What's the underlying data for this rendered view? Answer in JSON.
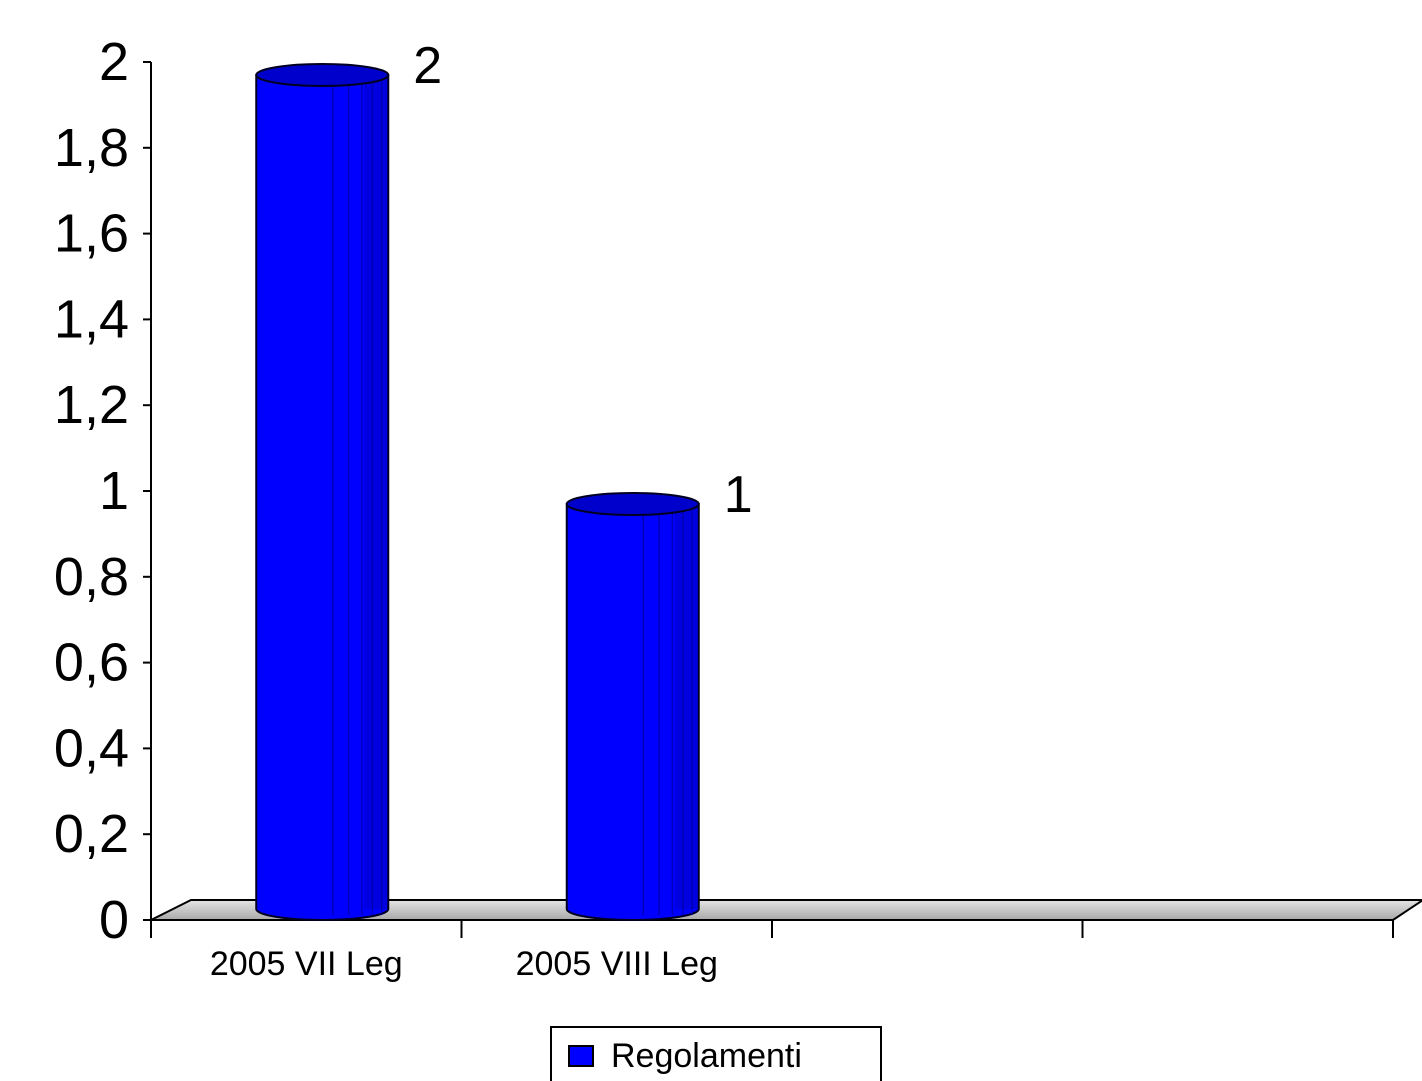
{
  "chart_data": {
    "type": "bar",
    "style": "3d-cylinder",
    "categories": [
      "2005 VII Leg",
      "2005 VIII Leg",
      "",
      ""
    ],
    "series": [
      {
        "name": "Regolamenti",
        "values": [
          2,
          1,
          null,
          null
        ],
        "color": "#0000ff"
      }
    ],
    "data_labels": [
      "2",
      "1",
      "",
      ""
    ],
    "ylim": [
      0,
      2
    ],
    "ytick_labels": [
      "0",
      "0,2",
      "0,4",
      "0,6",
      "0,8",
      "1",
      "1,2",
      "1,4",
      "1,6",
      "1,8",
      "2"
    ],
    "grid": false,
    "legend_position": "bottom",
    "colors": {
      "bar": "#0000ff",
      "bar_dark": "#0000a8",
      "floor": "#c8c8c8",
      "axis": "#000000"
    }
  }
}
